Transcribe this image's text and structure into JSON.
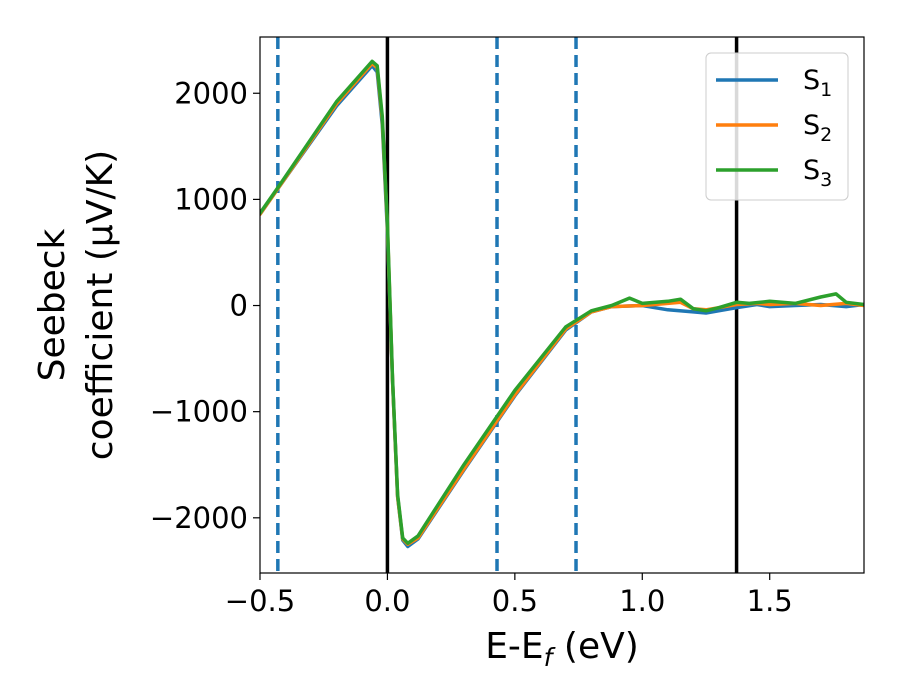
{
  "chart_data": {
    "type": "line",
    "xlabel": "E-E",
    "xlabel_sub": "f",
    "xlabel_unit": " (eV)",
    "ylabel_line1": "Seebeck",
    "ylabel_line2": "coefficient  (μV/K)",
    "xlim": [
      -0.5,
      1.87
    ],
    "ylim": [
      -2520,
      2530
    ],
    "x_ticks": [
      -0.5,
      0.0,
      0.5,
      1.0,
      1.5
    ],
    "x_tick_labels": [
      "−0.5",
      "0.0",
      "0.5",
      "1.0",
      "1.5"
    ],
    "y_ticks": [
      -2000,
      -1000,
      0,
      1000,
      2000
    ],
    "y_tick_labels": [
      "−2000",
      "−1000",
      "0",
      "1000",
      "2000"
    ],
    "grid": false,
    "legend_position": "top-right",
    "vlines": [
      {
        "x": -0.43,
        "style": "dashed",
        "color": "#1f77b4"
      },
      {
        "x": 0.0,
        "style": "solid",
        "color": "#000000"
      },
      {
        "x": 0.43,
        "style": "dashed",
        "color": "#1f77b4"
      },
      {
        "x": 0.74,
        "style": "dashed",
        "color": "#1f77b4"
      },
      {
        "x": 1.37,
        "style": "solid",
        "color": "#000000"
      }
    ],
    "series": [
      {
        "name": "S",
        "subscript": "1",
        "color": "#1f77b4",
        "points": [
          [
            -0.5,
            860
          ],
          [
            -0.43,
            1100
          ],
          [
            -0.2,
            1880
          ],
          [
            -0.06,
            2260
          ],
          [
            -0.04,
            2200
          ],
          [
            -0.02,
            1700
          ],
          [
            0.0,
            700
          ],
          [
            0.02,
            -700
          ],
          [
            0.04,
            -1800
          ],
          [
            0.06,
            -2210
          ],
          [
            0.08,
            -2270
          ],
          [
            0.12,
            -2200
          ],
          [
            0.3,
            -1550
          ],
          [
            0.5,
            -850
          ],
          [
            0.7,
            -230
          ],
          [
            0.8,
            -60
          ],
          [
            0.88,
            -10
          ],
          [
            1.0,
            0
          ],
          [
            1.05,
            -20
          ],
          [
            1.1,
            -40
          ],
          [
            1.2,
            -60
          ],
          [
            1.25,
            -70
          ],
          [
            1.3,
            -50
          ],
          [
            1.37,
            -20
          ],
          [
            1.45,
            10
          ],
          [
            1.5,
            -10
          ],
          [
            1.6,
            0
          ],
          [
            1.7,
            10
          ],
          [
            1.8,
            -10
          ],
          [
            1.87,
            10
          ]
        ]
      },
      {
        "name": "S",
        "subscript": "2",
        "color": "#ff7f0e",
        "points": [
          [
            -0.5,
            860
          ],
          [
            -0.43,
            1100
          ],
          [
            -0.2,
            1900
          ],
          [
            -0.06,
            2280
          ],
          [
            -0.04,
            2240
          ],
          [
            -0.02,
            1750
          ],
          [
            0.0,
            750
          ],
          [
            0.02,
            -700
          ],
          [
            0.04,
            -1800
          ],
          [
            0.06,
            -2200
          ],
          [
            0.08,
            -2250
          ],
          [
            0.12,
            -2190
          ],
          [
            0.3,
            -1540
          ],
          [
            0.5,
            -840
          ],
          [
            0.7,
            -220
          ],
          [
            0.8,
            -60
          ],
          [
            0.88,
            -10
          ],
          [
            1.0,
            0
          ],
          [
            1.05,
            10
          ],
          [
            1.1,
            20
          ],
          [
            1.15,
            30
          ],
          [
            1.2,
            -30
          ],
          [
            1.25,
            -40
          ],
          [
            1.3,
            -20
          ],
          [
            1.37,
            10
          ],
          [
            1.45,
            20
          ],
          [
            1.5,
            10
          ],
          [
            1.6,
            20
          ],
          [
            1.7,
            0
          ],
          [
            1.8,
            20
          ],
          [
            1.87,
            0
          ]
        ]
      },
      {
        "name": "S",
        "subscript": "3",
        "color": "#2ca02c",
        "points": [
          [
            -0.5,
            870
          ],
          [
            -0.43,
            1110
          ],
          [
            -0.2,
            1920
          ],
          [
            -0.06,
            2300
          ],
          [
            -0.04,
            2260
          ],
          [
            -0.02,
            1780
          ],
          [
            0.0,
            780
          ],
          [
            0.02,
            -680
          ],
          [
            0.04,
            -1780
          ],
          [
            0.06,
            -2190
          ],
          [
            0.08,
            -2240
          ],
          [
            0.12,
            -2170
          ],
          [
            0.3,
            -1500
          ],
          [
            0.5,
            -800
          ],
          [
            0.7,
            -200
          ],
          [
            0.8,
            -50
          ],
          [
            0.88,
            0
          ],
          [
            0.95,
            70
          ],
          [
            1.0,
            20
          ],
          [
            1.1,
            40
          ],
          [
            1.15,
            60
          ],
          [
            1.2,
            -30
          ],
          [
            1.25,
            -50
          ],
          [
            1.3,
            -20
          ],
          [
            1.37,
            30
          ],
          [
            1.42,
            20
          ],
          [
            1.5,
            40
          ],
          [
            1.6,
            20
          ],
          [
            1.7,
            80
          ],
          [
            1.76,
            110
          ],
          [
            1.8,
            30
          ],
          [
            1.87,
            10
          ]
        ]
      }
    ]
  }
}
